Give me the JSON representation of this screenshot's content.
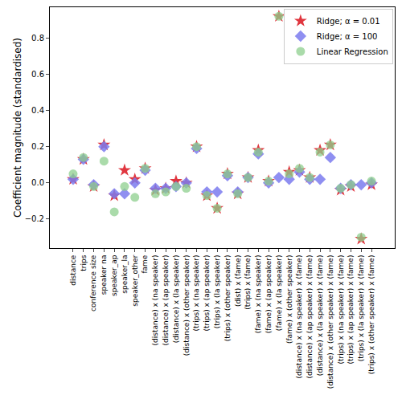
{
  "chart_data": {
    "type": "scatter",
    "y_label": "Coefficient magnitude (standardised)",
    "categories": [
      "distance",
      "trips",
      "conference size",
      "speaker na",
      "speaker_ap",
      "speaker_la",
      "speaker_other",
      "fame",
      "(distance) x (na speaker)",
      "(distance) x (ap speaker)",
      "(distance) x (la speaker)",
      "(distance) x (other speaker)",
      "(trips) x (na speaker)",
      "(trips) x (ap speaker)",
      "(trips) x (la speaker)",
      "(trips) x (other speaker)",
      "(dist) x (fame)",
      "(trips) x (fame)",
      "(fame) x (na speaker)",
      "(fame) x (ap speaker)",
      "(fame) x (la speaker)",
      "(fame) x (other speaker)",
      "(distance) x (na speaker) x (fame)",
      "(distance) x (ap speaker) x (fame)",
      "(distance) x (la speaker) x (fame)",
      "(distance) x (other speaker) x (fame)",
      "(trips) x (na speaker) x (fame)",
      "(trips) x (ap speaker) x (fame)",
      "(trips) x (la speaker) x (fame)",
      "(trips) x (other speaker) x (fame)"
    ],
    "series": [
      {
        "name": "Ridge; α = 0.01",
        "color": "#e0363f",
        "marker": "star",
        "values": [
          0.02,
          0.13,
          -0.02,
          0.21,
          -0.07,
          0.07,
          0.02,
          0.08,
          -0.04,
          -0.03,
          0.01,
          0.0,
          0.2,
          -0.07,
          -0.14,
          0.05,
          -0.06,
          0.03,
          0.18,
          0.01,
          0.92,
          0.06,
          0.07,
          0.03,
          0.18,
          0.21,
          -0.04,
          -0.02,
          -0.31,
          -0.01
        ]
      },
      {
        "name": "Ridge; α = 100",
        "color": "#7b7bee",
        "marker": "diamond",
        "values": [
          0.02,
          0.13,
          -0.01,
          0.2,
          -0.06,
          -0.06,
          0.0,
          0.07,
          -0.03,
          -0.03,
          -0.02,
          0.0,
          0.19,
          -0.05,
          -0.05,
          0.04,
          -0.05,
          0.03,
          0.16,
          0.0,
          0.03,
          0.02,
          0.06,
          0.02,
          0.02,
          0.14,
          -0.03,
          -0.01,
          -0.01,
          0.0
        ]
      },
      {
        "name": "Linear Regression",
        "color": "#8ecf8e",
        "marker": "circle",
        "values": [
          0.05,
          0.14,
          -0.02,
          0.12,
          -0.16,
          -0.02,
          -0.08,
          0.08,
          -0.06,
          -0.05,
          -0.02,
          -0.03,
          0.2,
          -0.07,
          -0.14,
          0.05,
          -0.06,
          0.03,
          0.17,
          0.01,
          0.92,
          0.05,
          0.08,
          0.03,
          0.17,
          0.21,
          -0.03,
          -0.01,
          -0.3,
          0.01
        ]
      }
    ],
    "ylim": [
      -0.36,
      0.97
    ],
    "yticks": [
      {
        "value": -0.2,
        "label": "−0.2"
      },
      {
        "value": 0,
        "label": "0.0"
      },
      0.2,
      0.4,
      0.6,
      0.8
    ],
    "grid": false,
    "legend": "upper right"
  }
}
